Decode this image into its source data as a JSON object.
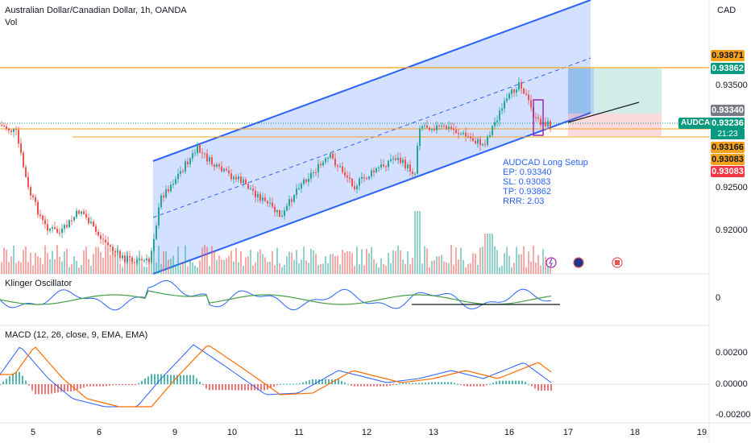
{
  "header": {
    "title": "Australian Dollar/Canadian Dollar, 1h, OANDA",
    "volume_label": "Vol"
  },
  "price_axis": {
    "currency": "CAD",
    "ticks": [
      "0.93500",
      "0.92500",
      "0.92000"
    ],
    "tags": {
      "target_top": "0.93871",
      "target_price": "0.93862",
      "entry_price": "0.93340",
      "current_price": "0.93236",
      "countdown": "21:23",
      "support_price": "0.93166",
      "stop_price_1": "0.93083",
      "stop_price_2": "0.93083"
    },
    "symbol_badge": "AUDCAD"
  },
  "setup_note": {
    "line1": "AUDCAD Long Setup",
    "line2": "EP: 0.93340",
    "line3": "SL: 0.93083",
    "line4": "TP: 0.93862",
    "line5": "RRR: 2.03"
  },
  "klinger": {
    "label": "Klinger Oscillator",
    "zero_tick": "0"
  },
  "macd": {
    "label": "MACD (12, 26, close, 9, EMA, EMA)",
    "ticks": [
      "0.00200",
      "0.00000",
      "-0.00200"
    ]
  },
  "time_axis": [
    "5",
    "6",
    "9",
    "10",
    "11",
    "12",
    "13",
    "16",
    "17",
    "18",
    "19"
  ],
  "colors": {
    "up": "#26a69a",
    "down": "#ef5350",
    "channel": "#2962ff",
    "level": "#f7a21b",
    "macd_line": "#2962ff",
    "signal_line": "#ff6d00"
  }
}
